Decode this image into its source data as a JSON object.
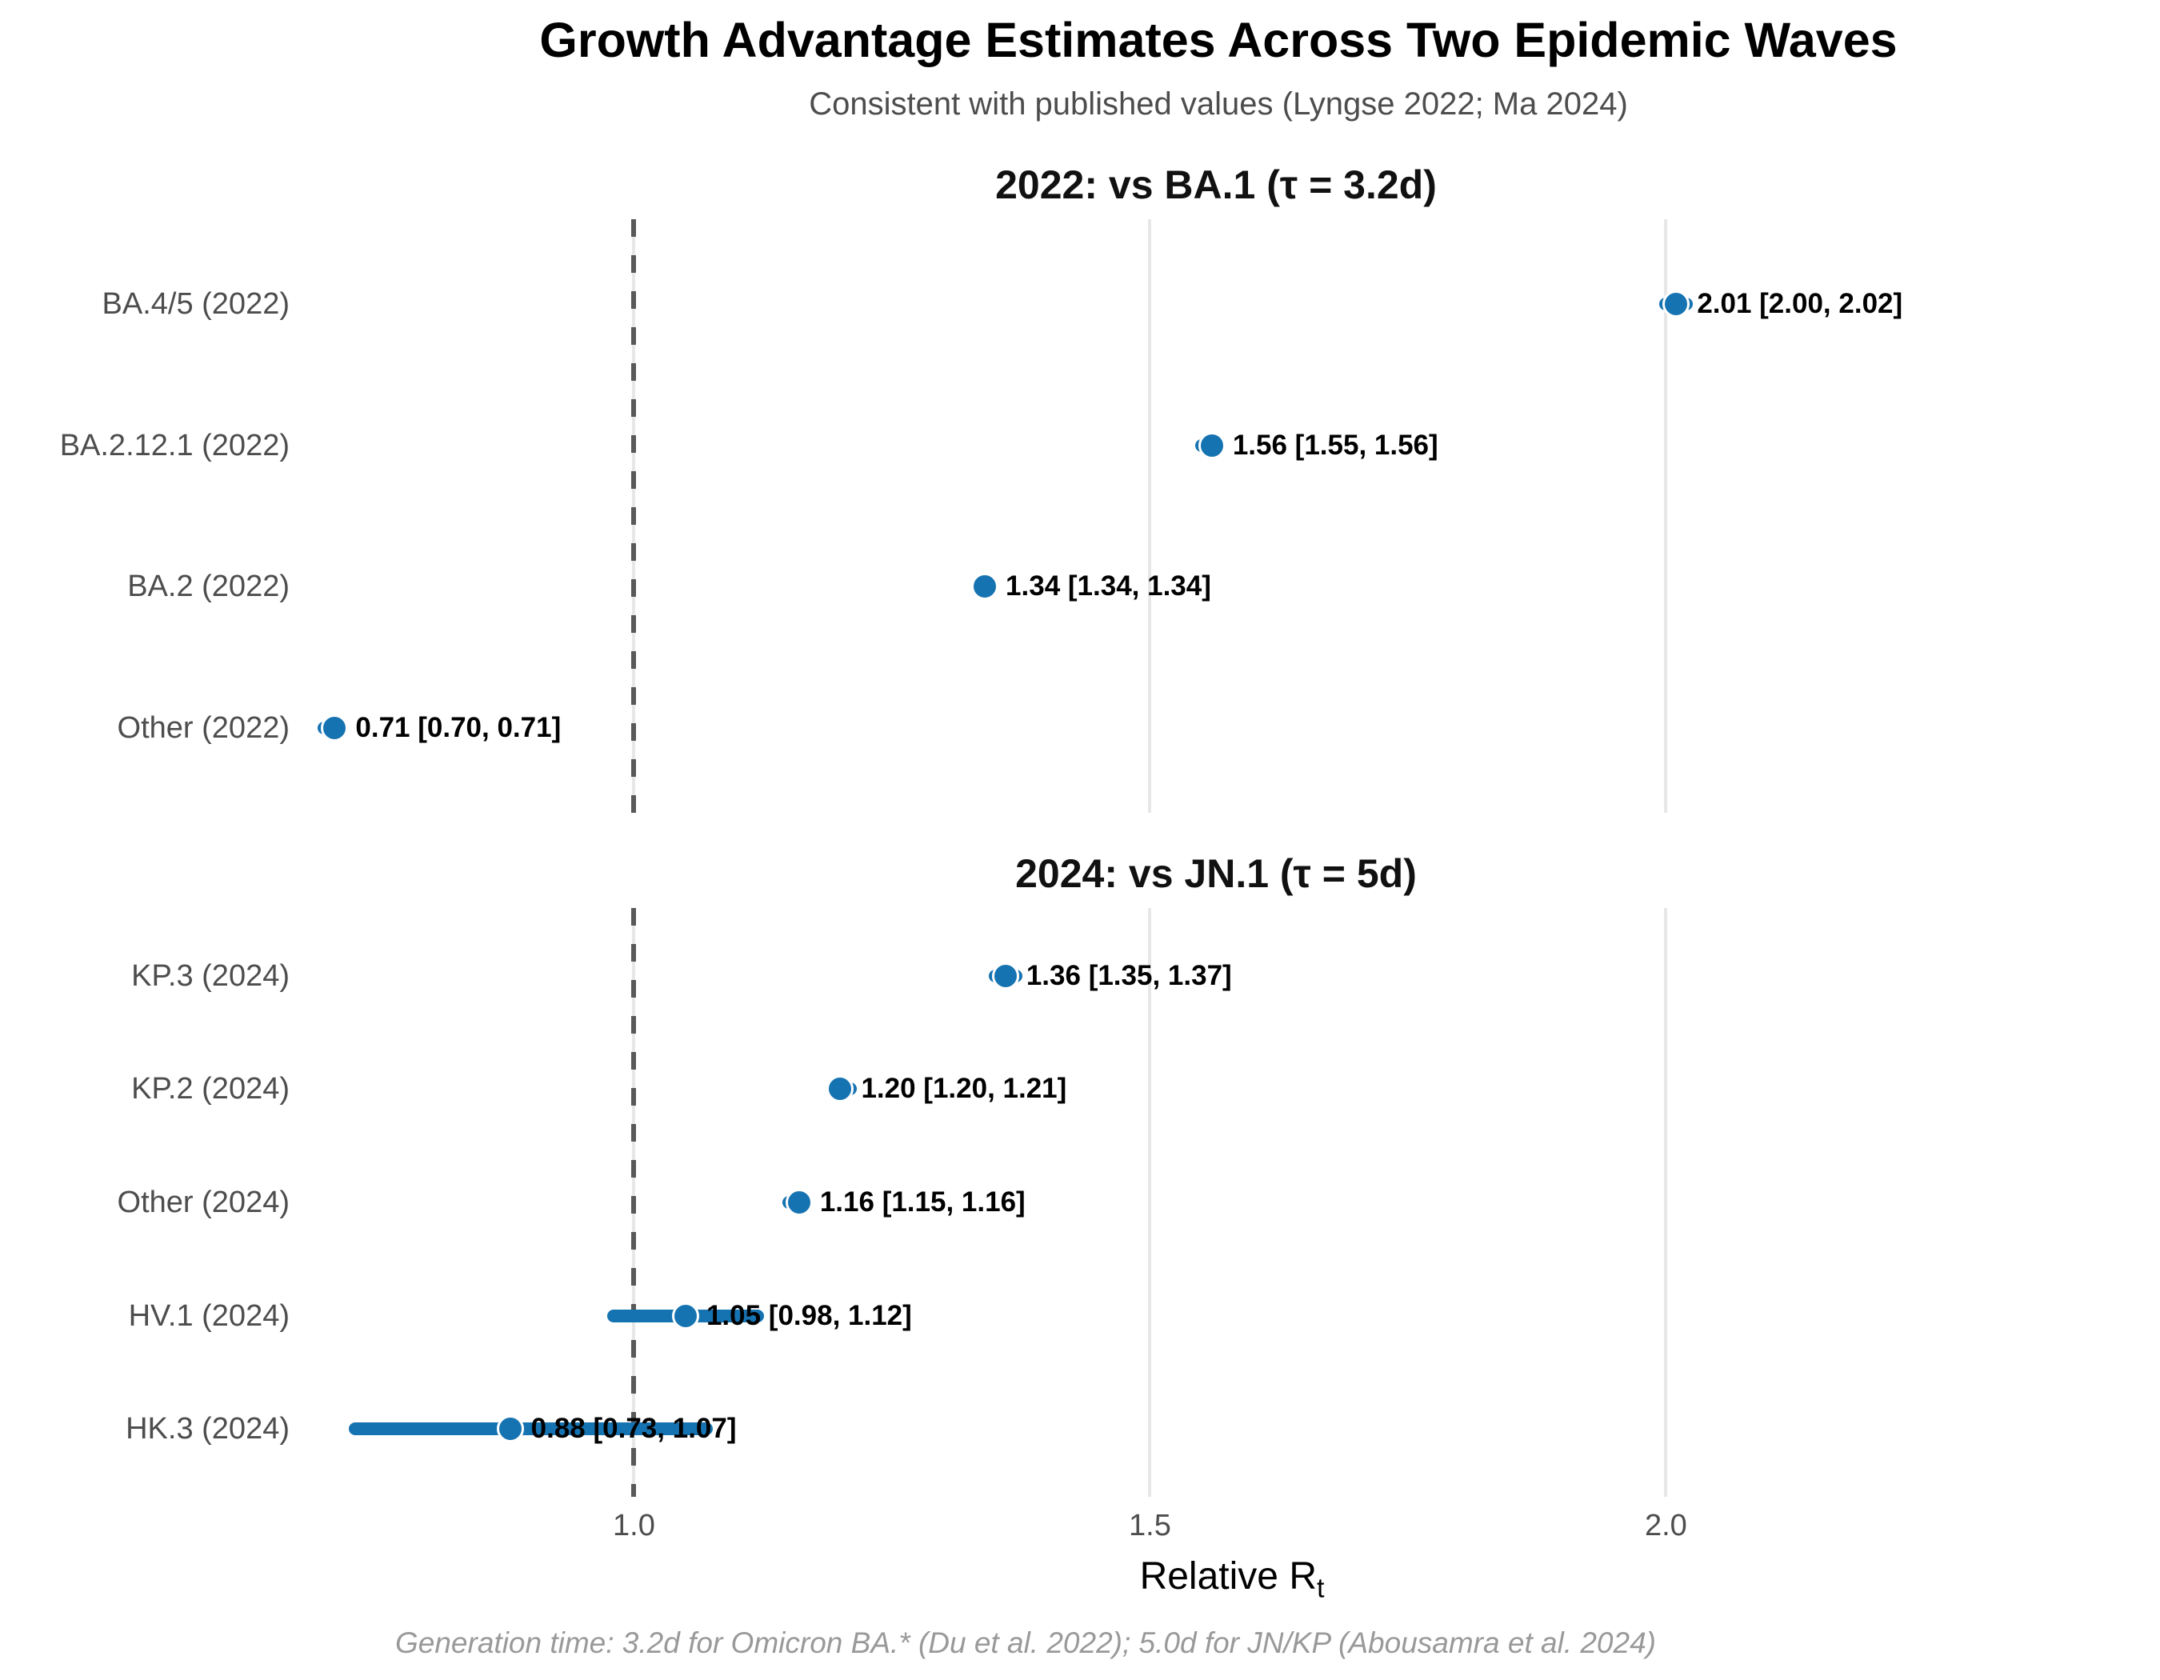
{
  "title": "Growth Advantage Estimates Across Two Epidemic Waves",
  "subtitle": "Consistent with published values (Lyngse 2022; Ma 2024)",
  "caption": "Generation time: 3.2d for Omicron BA.* (Du et al. 2022); 5.0d for JN/KP (Abousamra et al. 2024)",
  "x_axis": {
    "label_main": "Relative R",
    "label_sub": "t",
    "tick_labels": [
      "1.0",
      "1.5",
      "2.0"
    ],
    "tick_values": [
      1.0,
      1.5,
      2.0
    ]
  },
  "colors": {
    "point_blue": "#1673b1",
    "reference_line": "#595959",
    "gridline": "#e7e7e7",
    "axis_text": "#4d4d4d",
    "subtitle_text": "#4d4d4d",
    "caption_text": "#999999",
    "value_label": "#000000"
  },
  "chart_data": {
    "type": "scatter",
    "orientation": "horizontal-forest-plot",
    "xlabel": "Relative Rt",
    "xlim": [
      0.688,
      2.44
    ],
    "x_ticks": [
      1.0,
      1.5,
      2.0
    ],
    "reference_line_x": 1.0,
    "grid": "vertical-major-only",
    "legend": "none",
    "panels": [
      {
        "facet_title": "2022: vs BA.1 (τ = 3.2d)",
        "rows": [
          {
            "category": "BA.4/5 (2022)",
            "estimate": 2.01,
            "ci_low": 2.0,
            "ci_high": 2.02,
            "label": "2.01 [2.00, 2.02]"
          },
          {
            "category": "BA.2.12.1 (2022)",
            "estimate": 1.56,
            "ci_low": 1.55,
            "ci_high": 1.56,
            "label": "1.56 [1.55, 1.56]"
          },
          {
            "category": "BA.2 (2022)",
            "estimate": 1.34,
            "ci_low": 1.34,
            "ci_high": 1.34,
            "label": "1.34 [1.34, 1.34]"
          },
          {
            "category": "Other (2022)",
            "estimate": 0.71,
            "ci_low": 0.7,
            "ci_high": 0.71,
            "label": "0.71 [0.70, 0.71]"
          }
        ]
      },
      {
        "facet_title": "2024: vs JN.1 (τ = 5d)",
        "rows": [
          {
            "category": "KP.3 (2024)",
            "estimate": 1.36,
            "ci_low": 1.35,
            "ci_high": 1.37,
            "label": "1.36 [1.35, 1.37]"
          },
          {
            "category": "KP.2 (2024)",
            "estimate": 1.2,
            "ci_low": 1.2,
            "ci_high": 1.21,
            "label": "1.20 [1.20, 1.21]"
          },
          {
            "category": "Other (2024)",
            "estimate": 1.16,
            "ci_low": 1.15,
            "ci_high": 1.16,
            "label": "1.16 [1.15, 1.16]"
          },
          {
            "category": "HV.1 (2024)",
            "estimate": 1.05,
            "ci_low": 0.98,
            "ci_high": 1.12,
            "label": "1.05 [0.98, 1.12]"
          },
          {
            "category": "HK.3 (2024)",
            "estimate": 0.88,
            "ci_low": 0.73,
            "ci_high": 1.07,
            "label": "0.88 [0.73, 1.07]"
          }
        ]
      }
    ]
  }
}
